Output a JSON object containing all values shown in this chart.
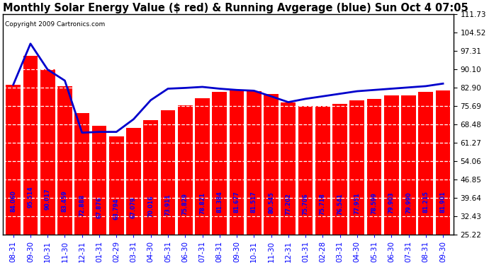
{
  "title": "Monthly Solar Energy Value ($ red) & Running Avgerage (blue) Sun Oct 4 07:05",
  "copyright": "Copyright 2009 Cartronics.com",
  "bar_values": [
    84.06,
    95.514,
    90.017,
    83.459,
    72.888,
    67.876,
    63.794,
    67.079,
    70.016,
    73.911,
    75.829,
    78.821,
    81.384,
    81.677,
    81.517,
    80.545,
    77.202,
    75.706,
    75.718,
    76.541,
    77.951,
    78.599,
    79.903,
    79.99,
    81.215,
    81.901
  ],
  "running_avg": [
    84.06,
    100.2,
    90.017,
    85.677,
    65.2,
    65.5,
    65.5,
    70.5,
    78.0,
    82.5,
    82.8,
    83.2,
    82.5,
    82.0,
    81.7,
    79.5,
    77.202,
    78.5,
    79.5,
    80.5,
    81.5,
    82.0,
    82.5,
    83.0,
    83.5,
    84.5
  ],
  "categories": [
    "08-31",
    "09-30",
    "10-31",
    "11-30",
    "12-31",
    "01-31",
    "02-29",
    "03-31",
    "04-30",
    "05-31",
    "06-30",
    "07-31",
    "08-31",
    "09-30",
    "10-31",
    "11-30",
    "12-31",
    "01-31",
    "02-28",
    "03-31",
    "04-30",
    "05-31",
    "06-30",
    "07-31",
    "08-31",
    "09-30"
  ],
  "bar_color": "#FF0000",
  "line_color": "#0000CC",
  "bg_color": "#FFFFFF",
  "plot_bg_color": "#FFFFFF",
  "grid_color": "#AAAAAA",
  "label_color": "#0000FF",
  "yticks": [
    25.22,
    32.43,
    39.64,
    46.85,
    54.06,
    61.27,
    68.48,
    75.69,
    82.9,
    90.1,
    97.31,
    104.52,
    111.73
  ],
  "ymin": 25.22,
  "ymax": 111.73,
  "title_fontsize": 10.5,
  "bar_label_fontsize": 5.8,
  "tick_fontsize": 7.5,
  "copyright_fontsize": 6.5
}
